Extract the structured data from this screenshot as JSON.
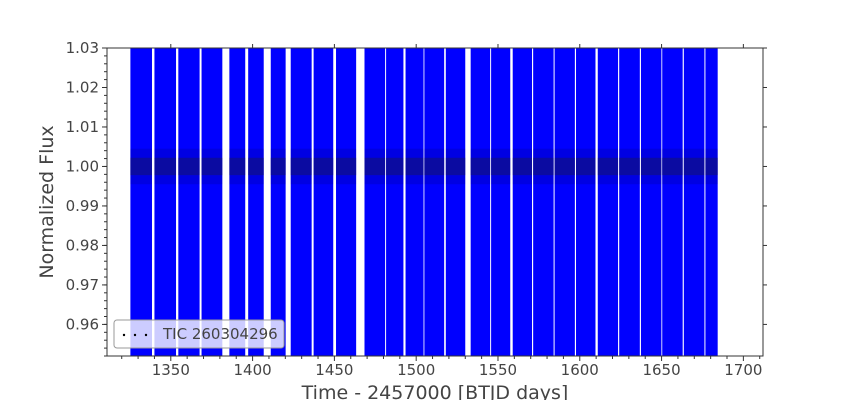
{
  "chart_data": {
    "type": "scatter",
    "title": "",
    "xlabel": "Time - 2457000 [BTJD days]",
    "ylabel": "Normalized Flux",
    "xlim": [
      1311,
      1712
    ],
    "ylim": [
      0.952,
      1.03
    ],
    "xticks": [
      1350,
      1400,
      1450,
      1500,
      1550,
      1600,
      1650,
      1700
    ],
    "yticks": [
      0.96,
      0.97,
      0.98,
      0.99,
      1.0,
      1.01,
      1.02,
      1.03
    ],
    "ytick_labels": [
      "0.96",
      "0.97",
      "0.98",
      "0.99",
      "1.00",
      "1.01",
      "1.02",
      "1.03"
    ],
    "grid": false,
    "legend_position": "bottom-left",
    "series": [
      {
        "name": "TIC 260304296",
        "color": "#0000ff",
        "marker_color": "#000000",
        "core_level": 1.0,
        "core_halfwidth": 0.0022,
        "spread_level": 0.0045,
        "observed_segments": [
          [
            1325.3,
            1338.5
          ],
          [
            1340.0,
            1353.2
          ],
          [
            1354.6,
            1367.6
          ],
          [
            1368.8,
            1381.5
          ],
          [
            1385.8,
            1395.5
          ],
          [
            1397.3,
            1406.8
          ],
          [
            1411.1,
            1420.2
          ],
          [
            1423.3,
            1436.1
          ],
          [
            1437.3,
            1449.3
          ],
          [
            1451.0,
            1463.3
          ],
          [
            1468.4,
            1481.0
          ],
          [
            1481.6,
            1492.2
          ],
          [
            1493.5,
            1504.5
          ],
          [
            1505.0,
            1517.1
          ],
          [
            1518.1,
            1530.0
          ],
          [
            1533.3,
            1545.2
          ],
          [
            1545.8,
            1557.5
          ],
          [
            1559.0,
            1570.8
          ],
          [
            1571.5,
            1584.0
          ],
          [
            1584.6,
            1597.0
          ],
          [
            1597.7,
            1609.6
          ],
          [
            1611.0,
            1623.4
          ],
          [
            1624.1,
            1636.7
          ],
          [
            1637.4,
            1649.9
          ],
          [
            1650.4,
            1662.9
          ],
          [
            1663.6,
            1676.2
          ],
          [
            1676.8,
            1684.3
          ]
        ]
      }
    ]
  }
}
